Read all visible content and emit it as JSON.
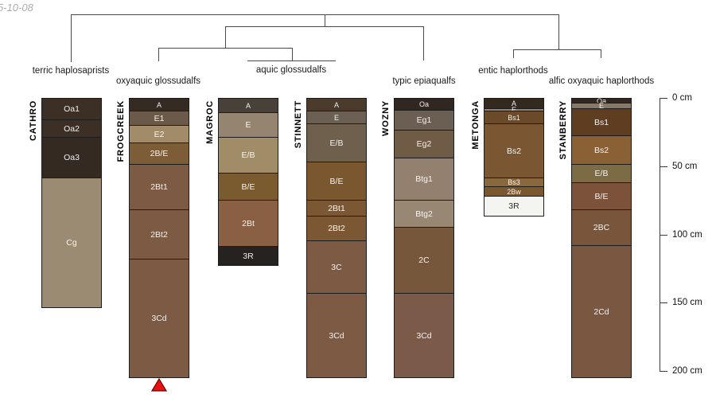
{
  "annotation": {
    "date_note": "5-10-08"
  },
  "chart_data": {
    "type": "soil-profile-sketch-with-dendrogram",
    "depth_unit": "cm",
    "depth_axis_ticks": [
      {
        "cm": 0,
        "label": "0 cm"
      },
      {
        "cm": 50,
        "label": "50 cm"
      },
      {
        "cm": 100,
        "label": "100 cm"
      },
      {
        "cm": 150,
        "label": "150 cm"
      },
      {
        "cm": 200,
        "label": "200 cm"
      }
    ],
    "classifications": [
      {
        "label": "terric haplosaprists",
        "profiles": [
          "CATHRO"
        ]
      },
      {
        "label": "oxyaquic glossudalfs",
        "profiles": [
          "FROGCREEK"
        ]
      },
      {
        "label": "aquic glossudalfs",
        "profiles": [
          "MAGROC",
          "STINNETT"
        ]
      },
      {
        "label": "typic epiaqualfs",
        "profiles": [
          "WOZNY"
        ]
      },
      {
        "label": "entic haplorthods",
        "profiles": [
          "METONGA"
        ]
      },
      {
        "label": "alfic oxyaquic haplorthods",
        "profiles": [
          "STANBERRY"
        ]
      }
    ],
    "profiles": [
      {
        "id": "CATHRO",
        "horizons": [
          {
            "name": "Oa1",
            "top_cm": 0,
            "bottom_cm": 15,
            "color": "#3b2f26"
          },
          {
            "name": "Oa2",
            "top_cm": 15,
            "bottom_cm": 28,
            "color": "#3b2f26"
          },
          {
            "name": "Oa3",
            "top_cm": 28,
            "bottom_cm": 58,
            "color": "#352a22"
          },
          {
            "name": "Cg",
            "top_cm": 58,
            "bottom_cm": 153,
            "color": "#9a8b72"
          }
        ]
      },
      {
        "id": "FROGCREEK",
        "horizons": [
          {
            "name": "A",
            "top_cm": 0,
            "bottom_cm": 9,
            "color": "#342b22"
          },
          {
            "name": "E1",
            "top_cm": 9,
            "bottom_cm": 19,
            "color": "#6b5a49"
          },
          {
            "name": "E2",
            "top_cm": 19,
            "bottom_cm": 32,
            "color": "#a28b68"
          },
          {
            "name": "2B/E",
            "top_cm": 32,
            "bottom_cm": 48,
            "color": "#7d5c38"
          },
          {
            "name": "2Bt1",
            "top_cm": 48,
            "bottom_cm": 81,
            "color": "#7c5a43"
          },
          {
            "name": "2Bt2",
            "top_cm": 81,
            "bottom_cm": 117,
            "color": "#7c5a43"
          },
          {
            "name": "3Cd",
            "top_cm": 117,
            "bottom_cm": 204,
            "color": "#7c5a43"
          }
        ]
      },
      {
        "id": "MAGROC",
        "horizons": [
          {
            "name": "A",
            "top_cm": 0,
            "bottom_cm": 10,
            "color": "#48413a"
          },
          {
            "name": "E",
            "top_cm": 10,
            "bottom_cm": 28,
            "color": "#95846f"
          },
          {
            "name": "E/B",
            "top_cm": 28,
            "bottom_cm": 54,
            "color": "#a18c68"
          },
          {
            "name": "B/E",
            "top_cm": 54,
            "bottom_cm": 74,
            "color": "#7a5a2f"
          },
          {
            "name": "2Bt",
            "top_cm": 74,
            "bottom_cm": 108,
            "color": "#8a6045"
          },
          {
            "name": "3R",
            "top_cm": 108,
            "bottom_cm": 122,
            "color": "#26221f"
          }
        ]
      },
      {
        "id": "STINNETT",
        "horizons": [
          {
            "name": "A",
            "top_cm": 0,
            "bottom_cm": 9,
            "color": "#4a3b2c"
          },
          {
            "name": "E",
            "top_cm": 9,
            "bottom_cm": 18,
            "color": "#6c6054"
          },
          {
            "name": "E/B",
            "top_cm": 18,
            "bottom_cm": 46,
            "color": "#6f604e"
          },
          {
            "name": "B/E",
            "top_cm": 46,
            "bottom_cm": 74,
            "color": "#7a572f"
          },
          {
            "name": "2Bt1",
            "top_cm": 74,
            "bottom_cm": 86,
            "color": "#7b5833"
          },
          {
            "name": "2Bt2",
            "top_cm": 86,
            "bottom_cm": 104,
            "color": "#7b5833"
          },
          {
            "name": "3C",
            "top_cm": 104,
            "bottom_cm": 142,
            "color": "#7c5a43"
          },
          {
            "name": "3Cd",
            "top_cm": 142,
            "bottom_cm": 204,
            "color": "#7c5a43"
          }
        ]
      },
      {
        "id": "WOZNY",
        "horizons": [
          {
            "name": "Oa",
            "top_cm": 0,
            "bottom_cm": 8,
            "color": "#2f2720"
          },
          {
            "name": "Eg1",
            "top_cm": 8,
            "bottom_cm": 23,
            "color": "#6b5e52"
          },
          {
            "name": "Eg2",
            "top_cm": 23,
            "bottom_cm": 43,
            "color": "#705b47"
          },
          {
            "name": "Btg1",
            "top_cm": 43,
            "bottom_cm": 74,
            "color": "#94806f"
          },
          {
            "name": "Btg2",
            "top_cm": 74,
            "bottom_cm": 94,
            "color": "#988873"
          },
          {
            "name": "2C",
            "top_cm": 94,
            "bottom_cm": 142,
            "color": "#76573c"
          },
          {
            "name": "3Cd",
            "top_cm": 142,
            "bottom_cm": 204,
            "color": "#7c5a49"
          }
        ]
      },
      {
        "id": "METONGA",
        "horizons": [
          {
            "name": "A",
            "top_cm": 0,
            "bottom_cm": 7,
            "color": "#33291e"
          },
          {
            "name": "E",
            "top_cm": 7,
            "bottom_cm": 9,
            "color": "#8d857b"
          },
          {
            "name": "Bs1",
            "top_cm": 9,
            "bottom_cm": 18,
            "color": "#6a4a28"
          },
          {
            "name": "Bs2",
            "top_cm": 18,
            "bottom_cm": 58,
            "color": "#7b5632"
          },
          {
            "name": "Bs3",
            "top_cm": 58,
            "bottom_cm": 64,
            "color": "#8a683e"
          },
          {
            "name": "2Bw",
            "top_cm": 64,
            "bottom_cm": 71,
            "color": "#7b572e"
          },
          {
            "name": "3R",
            "top_cm": 71,
            "bottom_cm": 86,
            "color": "#f4f4f1",
            "text": "#2a2a2a"
          }
        ]
      },
      {
        "id": "STANBERRY",
        "horizons": [
          {
            "name": "Oa",
            "top_cm": 0,
            "bottom_cm": 3,
            "color": "#2f2720"
          },
          {
            "name": "E",
            "top_cm": 3,
            "bottom_cm": 7,
            "color": "#877969"
          },
          {
            "name": "Bs1",
            "top_cm": 7,
            "bottom_cm": 27,
            "color": "#5e3d21"
          },
          {
            "name": "Bs2",
            "top_cm": 27,
            "bottom_cm": 48,
            "color": "#8a6134"
          },
          {
            "name": "E/B",
            "top_cm": 48,
            "bottom_cm": 61,
            "color": "#7d6b45"
          },
          {
            "name": "B/E",
            "top_cm": 61,
            "bottom_cm": 81,
            "color": "#7c523a"
          },
          {
            "name": "2BC",
            "top_cm": 81,
            "bottom_cm": 107,
            "color": "#79553c"
          },
          {
            "name": "2Cd",
            "top_cm": 107,
            "bottom_cm": 204,
            "color": "#7a5740"
          }
        ]
      }
    ],
    "marker": {
      "profile": "FROGCREEK",
      "shape": "triangle-up",
      "color": "#e81010"
    }
  }
}
